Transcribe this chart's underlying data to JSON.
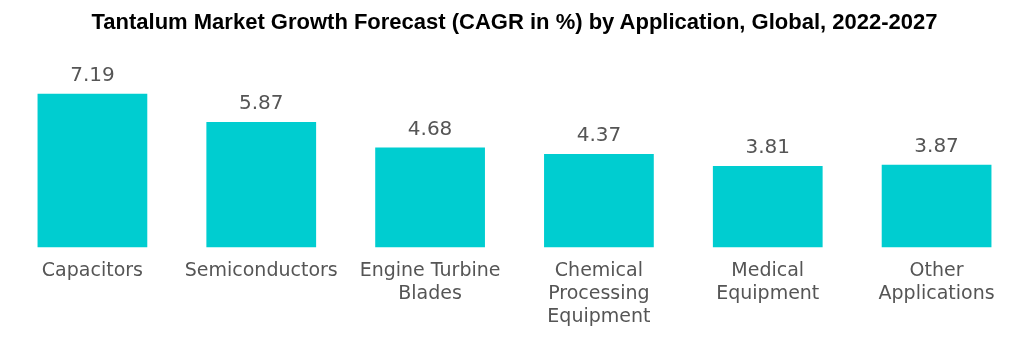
{
  "chart_data": {
    "type": "bar",
    "title": "Tantalum Market Growth Forecast (CAGR in %) by Application, Global, 2022-2027",
    "categories": [
      "Capacitors",
      "Semiconductors",
      "Engine Turbine Blades",
      "Chemical Processing Equipment",
      "Medical Equipment",
      "Other Applications"
    ],
    "values": [
      7.19,
      5.87,
      4.68,
      4.37,
      3.81,
      3.87
    ],
    "color": "#00cdd0",
    "data_labels": true,
    "grid": false,
    "legend": false
  }
}
